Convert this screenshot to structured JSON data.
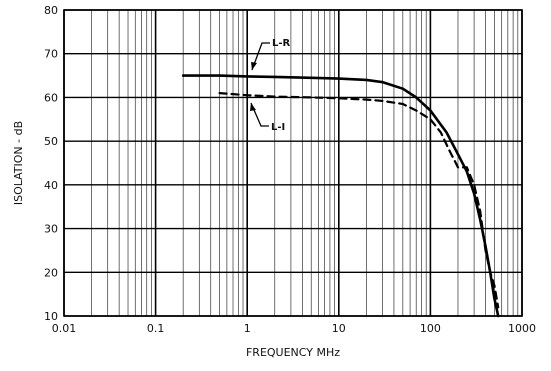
{
  "chart_data": {
    "type": "line",
    "title": "",
    "xlabel": "FREQUENCY MHz",
    "ylabel": "ISOLATION - dB",
    "x_scale": "log",
    "xlim": [
      0.01,
      1000
    ],
    "ylim": [
      10,
      80
    ],
    "x_ticks": [
      0.01,
      0.1,
      1,
      10,
      100,
      1000
    ],
    "x_tick_labels": [
      "0.01",
      "0.1",
      "1",
      "10",
      "100",
      "1000"
    ],
    "y_ticks": [
      10,
      20,
      30,
      40,
      50,
      60,
      70,
      80
    ],
    "y_tick_labels": [
      "10",
      "20",
      "30",
      "40",
      "50",
      "60",
      "70",
      "80"
    ],
    "grid": true,
    "legend": "none",
    "series": [
      {
        "name": "L-R",
        "style": "solid",
        "color": "#000000",
        "x": [
          0.2,
          0.5,
          1,
          2,
          5,
          10,
          20,
          30,
          50,
          70,
          100,
          150,
          200,
          250,
          300,
          350,
          400,
          450,
          500,
          550
        ],
        "y": [
          65,
          65,
          64.8,
          64.7,
          64.5,
          64.3,
          64.0,
          63.5,
          62,
          60,
          57,
          52,
          47,
          43,
          38,
          32,
          26,
          20,
          14,
          9
        ]
      },
      {
        "name": "L-I",
        "style": "dashed",
        "color": "#000000",
        "x": [
          0.5,
          1,
          2,
          5,
          10,
          20,
          30,
          50,
          70,
          100,
          130,
          160,
          200,
          250,
          300,
          350,
          400,
          450,
          500,
          550
        ],
        "y": [
          61,
          60.5,
          60.2,
          60,
          59.8,
          59.5,
          59.2,
          58.5,
          57,
          55,
          52,
          48,
          44,
          44,
          40,
          34,
          25,
          20,
          17,
          12
        ]
      }
    ],
    "annotations": [
      {
        "text": "L-R",
        "series": "L-R"
      },
      {
        "text": "L-I",
        "series": "L-I"
      }
    ]
  }
}
